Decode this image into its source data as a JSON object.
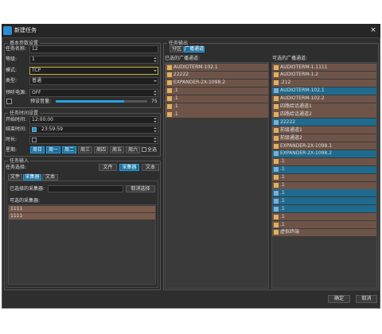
{
  "window": {
    "title": "新建任务",
    "close": "×"
  },
  "basic": {
    "title": "基本参数设置",
    "fields": [
      {
        "label": "任务名称:",
        "value": "12"
      },
      {
        "label": "等级:",
        "value": "1"
      },
      {
        "label": "模式:",
        "value": "TCP"
      },
      {
        "label": "类型:",
        "value": "普通"
      },
      {
        "label": "预听电源:",
        "value": "OFF"
      }
    ],
    "volume_label": "预设音量:",
    "volume": 75
  },
  "time": {
    "title": "任务时间设置",
    "start_label": "开始时间:",
    "start": "12:00:00",
    "end_label": "结束时间:",
    "end": "23:59:59",
    "duration_label": "时长:",
    "week_label": "星期:",
    "days": [
      "周日",
      "周一",
      "周二",
      "周三",
      "周四",
      "周五",
      "周六"
    ],
    "all": "全选"
  },
  "input": {
    "title": "任务输入",
    "select_label": "任务选择:",
    "buttons": [
      "文件",
      "采集器",
      "文本"
    ],
    "tabs": [
      "文件",
      "采集器",
      "文本"
    ],
    "selected_label": "已选择的采集器:",
    "cancel": "取消选择",
    "available_label": "可选的采集器:",
    "items": [
      "1111",
      "1111"
    ]
  },
  "output": {
    "title": "任务输出",
    "tabs": [
      "分区",
      "广播通道"
    ],
    "selected_label": "已选的广播通道:",
    "available_label": "可选的广播通道:",
    "selected": [
      "AUDIOTERM-102.1",
      "22222",
      "EXPANDER-2X-1098.2",
      ".1",
      ".1",
      ".1",
      ".1"
    ],
    "available": [
      "AUDIOTERM-1.1111",
      "AUDIOTERM-1.2",
      ".212",
      "AUDIOTERM-102.1",
      "AUDIOTERM-102.2",
      "四路给话通道1",
      "四路给话通道2",
      "22222",
      "前级通道1",
      "前级通道2",
      "EXPANDER-2X-1098.1",
      "EXPANDER-2X-1098.2",
      ".1",
      ".1",
      ".1",
      ".1",
      ".1",
      ".1",
      ".1",
      ".1",
      ".1",
      "虚拟终端"
    ]
  },
  "footer": {
    "ok": "确定",
    "cancel": "取消"
  }
}
